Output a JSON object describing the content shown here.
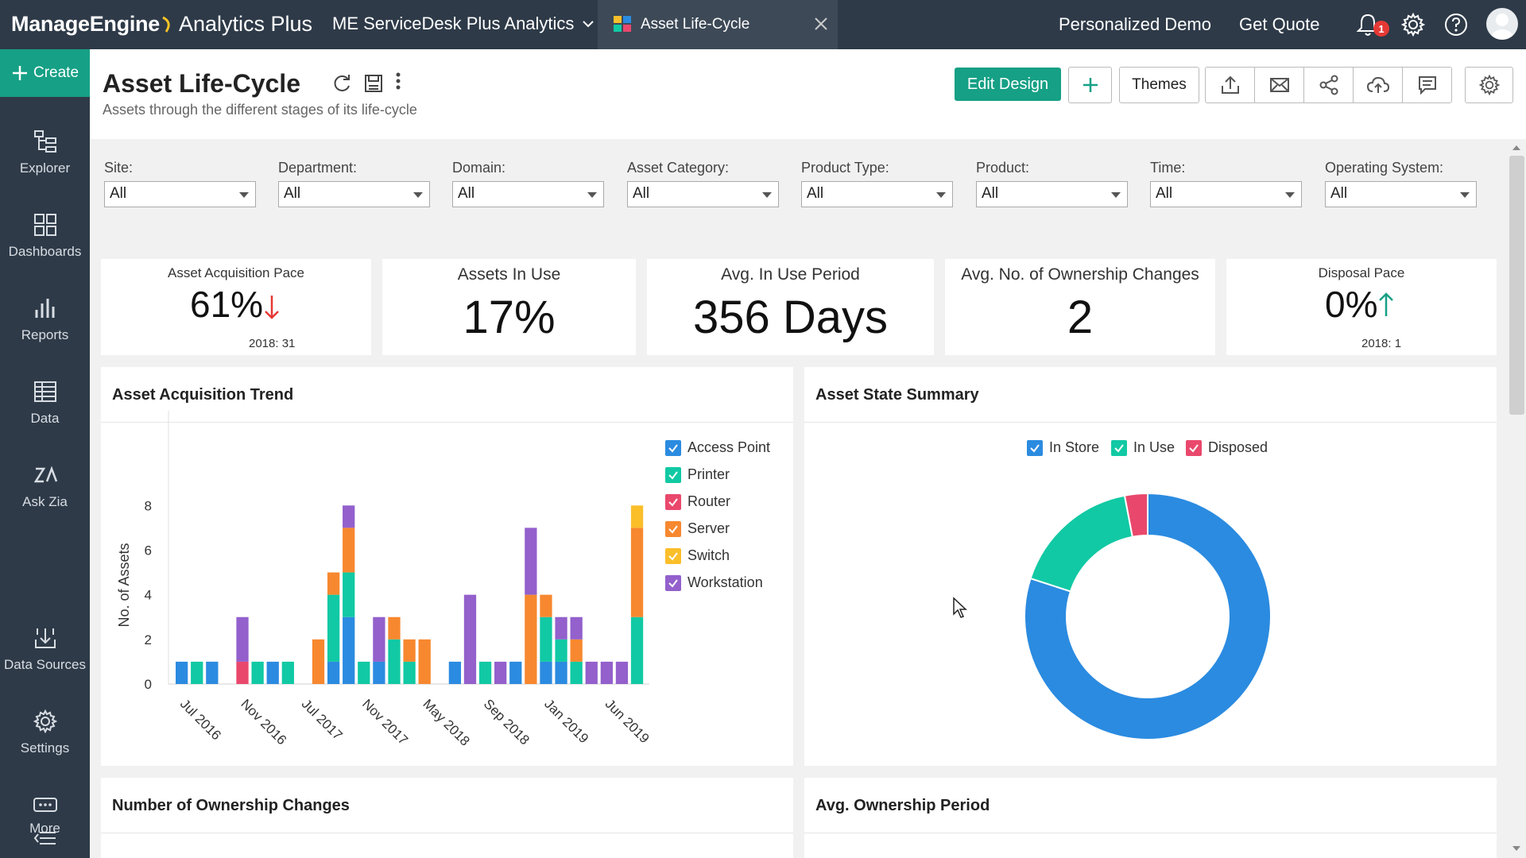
{
  "topbar": {
    "logo_brand": "ManageEngine",
    "logo_product": "Analytics Plus",
    "workspace": "ME ServiceDesk Plus Analytics",
    "active_tab": "Asset Life-Cycle",
    "personalized_demo": "Personalized Demo",
    "get_quote": "Get Quote",
    "notification_count": "1"
  },
  "sidebar": {
    "create": "Create",
    "items": [
      {
        "label": "Explorer",
        "icon": "explorer-icon"
      },
      {
        "label": "Dashboards",
        "icon": "dashboards-icon"
      },
      {
        "label": "Reports",
        "icon": "reports-icon"
      },
      {
        "label": "Data",
        "icon": "data-icon"
      },
      {
        "label": "Ask Zia",
        "icon": "ask-zia-icon"
      },
      {
        "label": "Data Sources",
        "icon": "data-sources-icon"
      },
      {
        "label": "Settings",
        "icon": "settings-icon"
      },
      {
        "label": "More",
        "icon": "more-icon"
      }
    ]
  },
  "header": {
    "title": "Asset Life-Cycle",
    "subtitle": "Assets through the different stages of its life-cycle",
    "edit_design": "Edit Design",
    "themes": "Themes"
  },
  "filters": [
    {
      "label": "Site:",
      "value": "All"
    },
    {
      "label": "Department:",
      "value": "All"
    },
    {
      "label": "Domain:",
      "value": "All"
    },
    {
      "label": "Asset Category:",
      "value": "All"
    },
    {
      "label": "Product Type:",
      "value": "All"
    },
    {
      "label": "Product:",
      "value": "All"
    },
    {
      "label": "Time:",
      "value": "All"
    },
    {
      "label": "Operating System:",
      "value": "All"
    }
  ],
  "kpis": [
    {
      "title": "Asset Acquisition Pace",
      "value": "61%",
      "sub": "2018: 31",
      "trend": "down",
      "trend_color": "#e53935"
    },
    {
      "title": "Assets In Use",
      "value": "17%"
    },
    {
      "title": "Avg. In Use Period",
      "value": "356 Days"
    },
    {
      "title": "Avg. No. of Ownership Changes",
      "value": "2"
    },
    {
      "title": "Disposal Pace",
      "value": "0%",
      "sub": "2018: 1",
      "trend": "up",
      "trend_color": "#16a085"
    }
  ],
  "cards": {
    "acq_trend": "Asset Acquisition Trend",
    "state_summary": "Asset State Summary",
    "ownership_changes": "Number of Ownership Changes",
    "ownership_period": "Avg. Ownership Period"
  },
  "chart_data": [
    {
      "type": "bar",
      "stacked": true,
      "title": "Asset Acquisition Trend",
      "xlabel": "",
      "ylabel": "No. of Assets",
      "ylim": [
        0,
        11
      ],
      "yticks": [
        0,
        2,
        4,
        6,
        8
      ],
      "x_tick_labels": [
        "Jul 2016",
        "Nov 2016",
        "Jul 2017",
        "Nov 2017",
        "May 2018",
        "Sep 2018",
        "Jan 2019",
        "Jun 2019"
      ],
      "x_tick_index": [
        1,
        5,
        9,
        13,
        17,
        21,
        25,
        29
      ],
      "legend_position": "top-right",
      "series": [
        {
          "name": "Access Point",
          "color": "#2b8be0",
          "values": [
            1,
            0,
            1,
            0,
            0,
            0,
            1,
            0,
            0,
            0,
            1,
            3,
            0,
            1,
            0,
            0,
            0,
            0,
            1,
            0,
            0,
            0,
            1,
            0,
            1,
            1,
            0,
            0,
            0,
            0,
            0
          ]
        },
        {
          "name": "Printer",
          "color": "#11c9a4",
          "values": [
            0,
            1,
            0,
            0,
            0,
            1,
            0,
            1,
            0,
            0,
            3,
            2,
            1,
            0,
            2,
            1,
            0,
            0,
            0,
            0,
            1,
            0,
            0,
            0,
            2,
            1,
            1,
            0,
            0,
            0,
            3
          ]
        },
        {
          "name": "Router",
          "color": "#e9486c",
          "values": [
            0,
            0,
            0,
            0,
            1,
            0,
            0,
            0,
            0,
            0,
            0,
            0,
            0,
            0,
            0,
            0,
            0,
            0,
            0,
            0,
            0,
            0,
            0,
            0,
            0,
            0,
            0,
            0,
            0,
            0,
            0
          ]
        },
        {
          "name": "Server",
          "color": "#f7882f",
          "values": [
            0,
            0,
            0,
            0,
            0,
            0,
            0,
            0,
            0,
            2,
            1,
            2,
            0,
            0,
            1,
            1,
            2,
            0,
            0,
            0,
            0,
            0,
            0,
            4,
            1,
            0,
            1,
            0,
            0,
            0,
            4
          ]
        },
        {
          "name": "Switch",
          "color": "#fbbf2a",
          "values": [
            0,
            0,
            0,
            0,
            0,
            0,
            0,
            0,
            0,
            0,
            0,
            0,
            0,
            0,
            0,
            0,
            0,
            0,
            0,
            0,
            0,
            0,
            0,
            0,
            0,
            0,
            0,
            0,
            0,
            0,
            1
          ]
        },
        {
          "name": "Workstation",
          "color": "#9360cc",
          "values": [
            0,
            0,
            0,
            0,
            2,
            0,
            0,
            0,
            0,
            0,
            0,
            1,
            0,
            2,
            0,
            0,
            0,
            0,
            0,
            4,
            0,
            1,
            0,
            3,
            0,
            1,
            1,
            1,
            1,
            1,
            0
          ]
        }
      ]
    },
    {
      "type": "pie",
      "donut": true,
      "title": "Asset State Summary",
      "legend_position": "top",
      "series": [
        {
          "name": "In Store",
          "color": "#2b8be0",
          "value": 80
        },
        {
          "name": "In Use",
          "color": "#11c9a4",
          "value": 17
        },
        {
          "name": "Disposed",
          "color": "#e9486c",
          "value": 3
        }
      ]
    }
  ]
}
